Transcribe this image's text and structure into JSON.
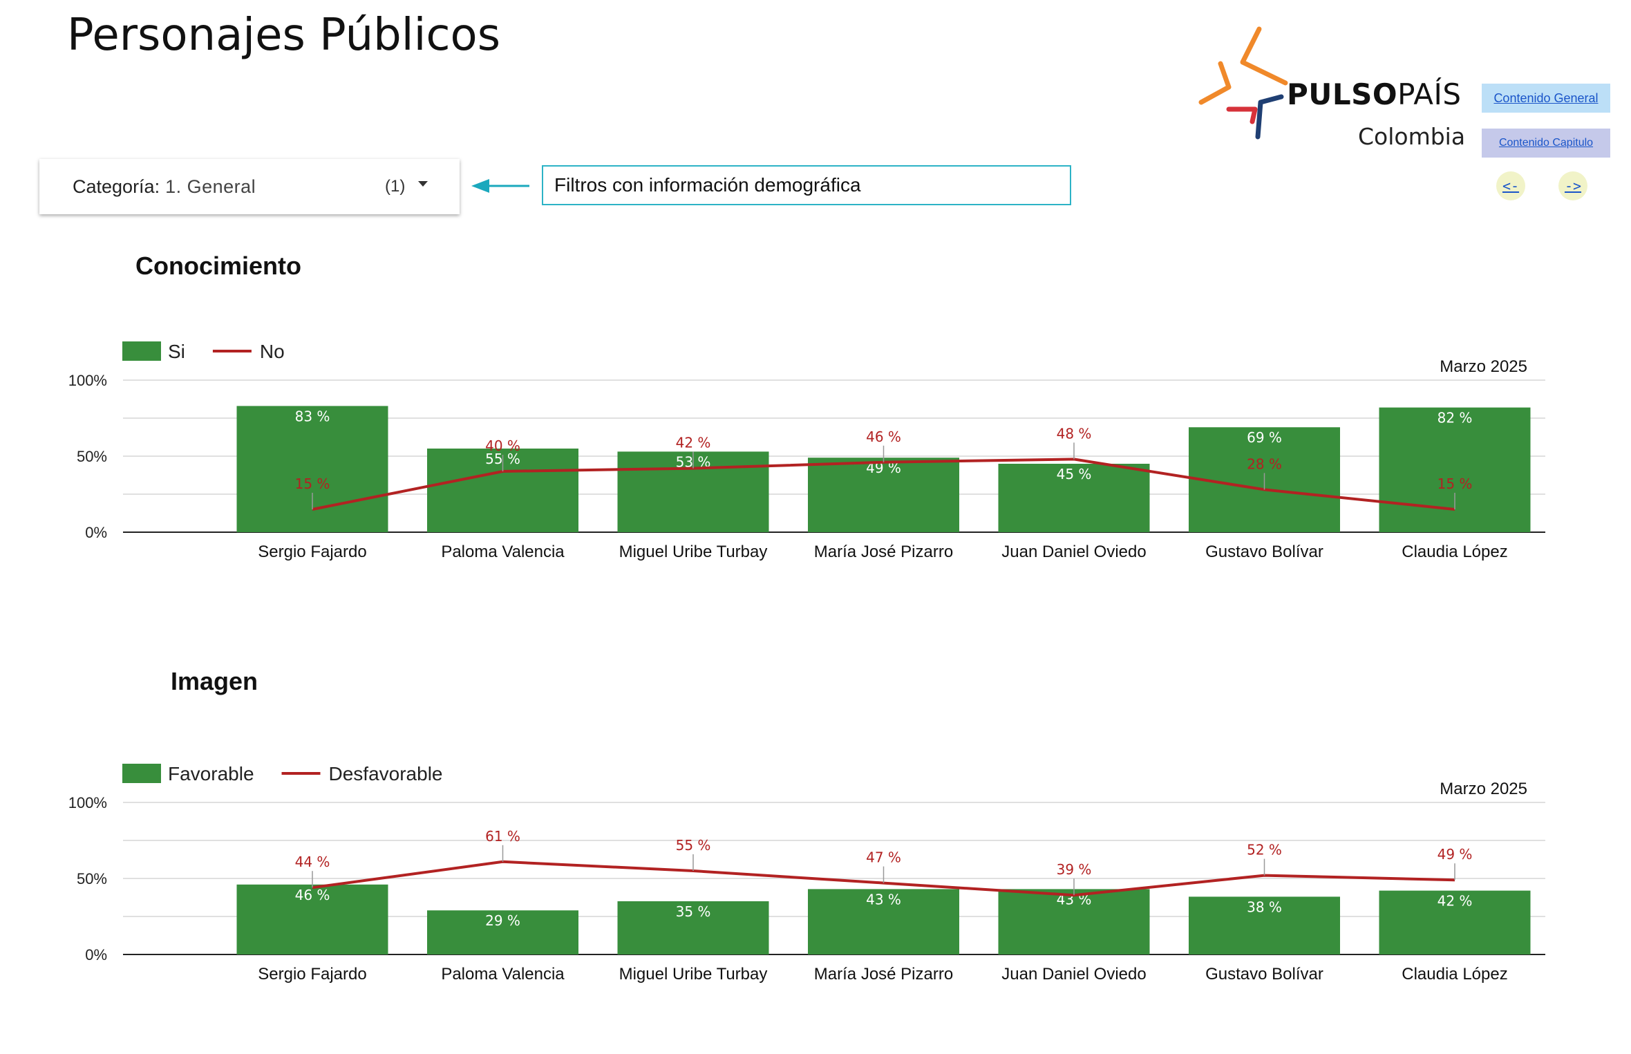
{
  "header": {
    "title": "Personajes Públicos",
    "logo_word_bold": "PULSO",
    "logo_word_light": "PAÍS",
    "logo_country": "Colombia",
    "link_general": "Contenido General",
    "link_capitulo": "Contenido Capitulo",
    "nav_prev": "<-",
    "nav_next": "->"
  },
  "filter": {
    "label": "Categoría:",
    "value": "1. General",
    "count": "(1)",
    "note": "Filtros con información demográfica"
  },
  "colors": {
    "bar": "#388e3c",
    "line": "#b22222",
    "note_border": "#2db3c6",
    "arrow": "#1ba8bd"
  },
  "chart_data": [
    {
      "type": "bar",
      "title": "Conocimiento",
      "period": "Marzo 2025",
      "categories": [
        "Sergio Fajardo",
        "Paloma Valencia",
        "Miguel Uribe Turbay",
        "María José Pizarro",
        "Juan Daniel Oviedo",
        "Gustavo Bolívar",
        "Claudia López"
      ],
      "series": [
        {
          "name": "Si",
          "type": "bar",
          "values": [
            83,
            55,
            53,
            49,
            45,
            69,
            82
          ]
        },
        {
          "name": "No",
          "type": "line",
          "values": [
            15,
            40,
            42,
            46,
            48,
            28,
            15
          ]
        }
      ],
      "ylim": [
        0,
        100
      ],
      "yticks": [
        "0%",
        "50%",
        "100%"
      ],
      "grid": true,
      "legend": "top-left"
    },
    {
      "type": "bar",
      "title": "Imagen",
      "period": "Marzo 2025",
      "categories": [
        "Sergio Fajardo",
        "Paloma Valencia",
        "Miguel Uribe Turbay",
        "María José Pizarro",
        "Juan Daniel Oviedo",
        "Gustavo Bolívar",
        "Claudia López"
      ],
      "series": [
        {
          "name": "Favorable",
          "type": "bar",
          "values": [
            46,
            29,
            35,
            43,
            43,
            38,
            42
          ]
        },
        {
          "name": "Desfavorable",
          "type": "line",
          "values": [
            44,
            61,
            55,
            47,
            39,
            52,
            49
          ]
        }
      ],
      "ylim": [
        0,
        100
      ],
      "yticks": [
        "0%",
        "50%",
        "100%"
      ],
      "grid": true,
      "legend": "top-left"
    }
  ]
}
